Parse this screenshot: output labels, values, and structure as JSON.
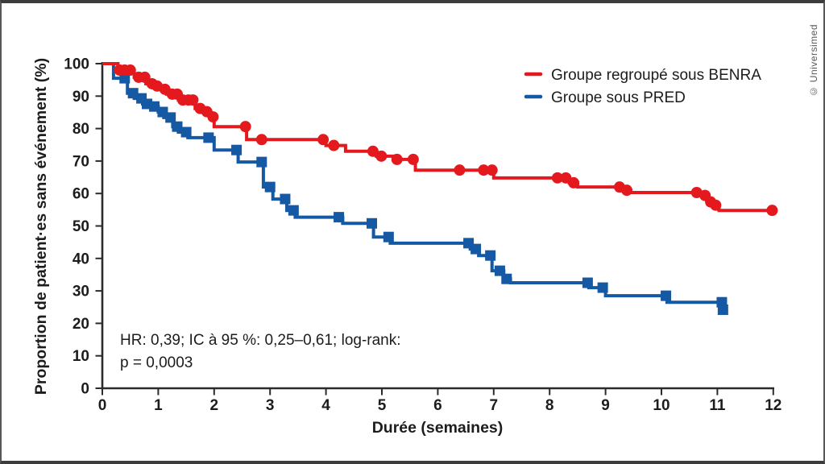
{
  "frame": {
    "copyright": "© Universimed",
    "border_color": "#3c3c3e",
    "background": "#ffffff"
  },
  "chart_data": {
    "type": "line",
    "subtype": "kaplan-meier-step",
    "title": "",
    "xlabel": "Durée (semaines)",
    "ylabel": "Proportion de patient·es sans événement (%)",
    "xlim": [
      0,
      12
    ],
    "ylim": [
      0,
      100
    ],
    "grid": false,
    "x_ticks": [
      0,
      1,
      2,
      3,
      4,
      5,
      6,
      7,
      8,
      9,
      10,
      11,
      12
    ],
    "y_ticks": [
      0,
      10,
      20,
      30,
      40,
      50,
      60,
      70,
      80,
      90,
      100
    ],
    "axis_color": "#2b2b2b",
    "annotation": {
      "line1": "HR: 0,39; IC à 95 %: 0,25–0,61; log-rank:",
      "line2": "p = 0,0003"
    },
    "legend": {
      "position": "top-right",
      "entries": [
        {
          "label": "Groupe regroupé sous BENRA",
          "color": "#e3191e"
        },
        {
          "label": "Groupe sous PRED",
          "color": "#1558a3"
        }
      ]
    },
    "series": [
      {
        "name": "Groupe sous PRED",
        "color": "#1558a3",
        "marker": "square",
        "end_week": 11.12,
        "steps": [
          [
            0,
            100
          ],
          [
            0.2,
            95.5
          ],
          [
            0.45,
            90.9
          ],
          [
            0.57,
            89.3
          ],
          [
            0.72,
            87.6
          ],
          [
            0.85,
            86.8
          ],
          [
            1.0,
            85.1
          ],
          [
            1.1,
            83.4
          ],
          [
            1.26,
            80.6
          ],
          [
            1.36,
            78.9
          ],
          [
            1.53,
            77.2
          ],
          [
            2.0,
            73.4
          ],
          [
            2.43,
            69.7
          ],
          [
            2.88,
            62.0
          ],
          [
            3.05,
            58.3
          ],
          [
            3.3,
            54.8
          ],
          [
            3.45,
            52.7
          ],
          [
            4.3,
            50.8
          ],
          [
            4.85,
            46.6
          ],
          [
            5.15,
            44.7
          ],
          [
            6.58,
            42.9
          ],
          [
            6.73,
            40.9
          ],
          [
            6.97,
            36.2
          ],
          [
            7.18,
            33.7
          ],
          [
            7.3,
            32.5
          ],
          [
            8.7,
            31.0
          ],
          [
            9.0,
            28.5
          ],
          [
            10.1,
            26.5
          ]
        ],
        "censors": [
          [
            0.4,
            95.5
          ],
          [
            0.55,
            90.9
          ],
          [
            0.7,
            89.3
          ],
          [
            0.8,
            87.6
          ],
          [
            0.93,
            86.8
          ],
          [
            1.08,
            85.1
          ],
          [
            1.22,
            83.4
          ],
          [
            1.34,
            80.6
          ],
          [
            1.5,
            78.9
          ],
          [
            1.9,
            77.2
          ],
          [
            2.4,
            73.4
          ],
          [
            2.85,
            69.7
          ],
          [
            3.0,
            62.0
          ],
          [
            3.27,
            58.3
          ],
          [
            3.42,
            54.8
          ],
          [
            4.23,
            52.7
          ],
          [
            4.82,
            50.8
          ],
          [
            5.12,
            46.6
          ],
          [
            6.55,
            44.7
          ],
          [
            6.68,
            42.9
          ],
          [
            6.94,
            40.9
          ],
          [
            7.11,
            36.2
          ],
          [
            7.23,
            33.7
          ],
          [
            8.68,
            32.5
          ],
          [
            8.95,
            31.0
          ],
          [
            10.08,
            28.5
          ],
          [
            11.08,
            26.5
          ],
          [
            11.1,
            24.2
          ]
        ]
      },
      {
        "name": "Groupe regroupé sous BENRA",
        "color": "#e3191e",
        "marker": "circle",
        "end_week": 12.0,
        "steps": [
          [
            0,
            100
          ],
          [
            0.28,
            98
          ],
          [
            0.57,
            95.8
          ],
          [
            0.78,
            93.8
          ],
          [
            0.96,
            93.1
          ],
          [
            1.03,
            92.1
          ],
          [
            1.15,
            90.6
          ],
          [
            1.36,
            88.8
          ],
          [
            1.66,
            86.2
          ],
          [
            1.8,
            85.2
          ],
          [
            1.93,
            83.6
          ],
          [
            2.0,
            80.6
          ],
          [
            2.58,
            76.6
          ],
          [
            4.0,
            74.8
          ],
          [
            4.35,
            73.0
          ],
          [
            4.9,
            71.5
          ],
          [
            5.3,
            70.5
          ],
          [
            5.6,
            67.2
          ],
          [
            7.0,
            64.8
          ],
          [
            8.35,
            63.3
          ],
          [
            8.5,
            62.0
          ],
          [
            9.3,
            61.0
          ],
          [
            9.45,
            60.3
          ],
          [
            10.7,
            59.4
          ],
          [
            10.83,
            57.4
          ],
          [
            10.93,
            56.4
          ],
          [
            11.03,
            54.8
          ]
        ],
        "censors": [
          [
            0.31,
            98
          ],
          [
            0.4,
            98
          ],
          [
            0.5,
            98
          ],
          [
            0.65,
            95.8
          ],
          [
            0.76,
            95.8
          ],
          [
            0.89,
            93.8
          ],
          [
            0.98,
            93.1
          ],
          [
            1.12,
            92.1
          ],
          [
            1.25,
            90.6
          ],
          [
            1.34,
            90.6
          ],
          [
            1.44,
            88.8
          ],
          [
            1.54,
            88.8
          ],
          [
            1.62,
            88.8
          ],
          [
            1.75,
            86.2
          ],
          [
            1.87,
            85.2
          ],
          [
            1.98,
            83.6
          ],
          [
            2.56,
            80.6
          ],
          [
            2.85,
            76.6
          ],
          [
            3.95,
            76.6
          ],
          [
            4.14,
            74.8
          ],
          [
            4.84,
            73.0
          ],
          [
            4.99,
            71.5
          ],
          [
            5.27,
            70.5
          ],
          [
            5.56,
            70.5
          ],
          [
            6.39,
            67.2
          ],
          [
            6.82,
            67.2
          ],
          [
            6.97,
            67.2
          ],
          [
            8.14,
            64.8
          ],
          [
            8.29,
            64.8
          ],
          [
            8.43,
            63.3
          ],
          [
            9.25,
            62.0
          ],
          [
            9.38,
            61.0
          ],
          [
            10.63,
            60.3
          ],
          [
            10.78,
            59.4
          ],
          [
            10.88,
            57.4
          ],
          [
            10.97,
            56.4
          ],
          [
            11.98,
            54.8
          ]
        ]
      }
    ]
  }
}
